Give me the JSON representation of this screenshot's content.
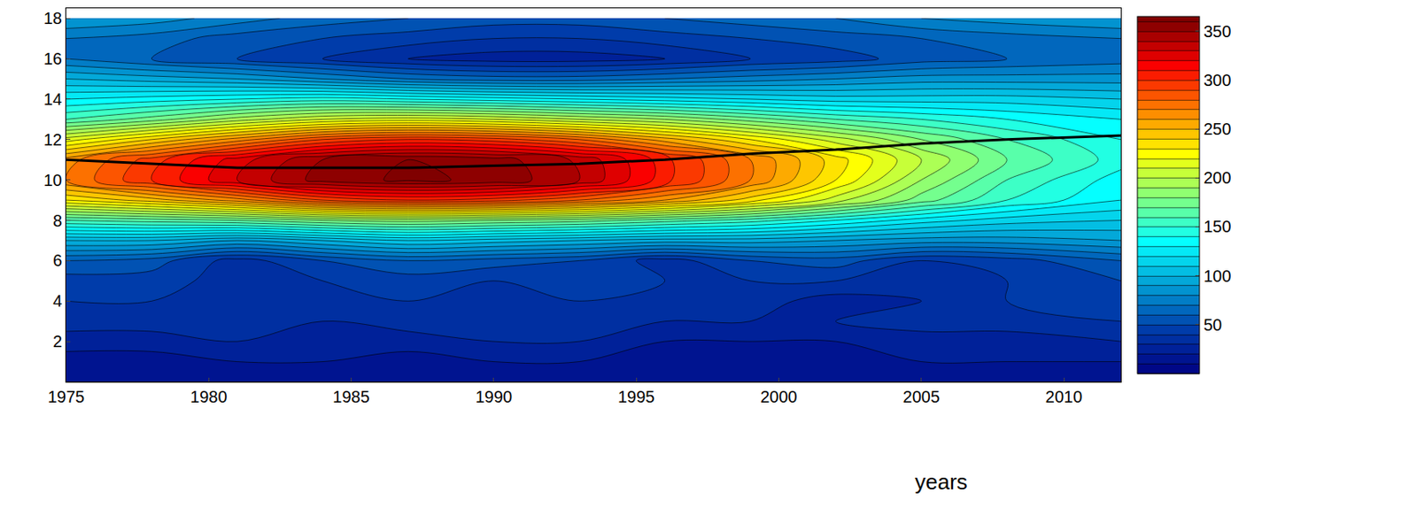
{
  "chart_data": {
    "type": "contour",
    "xlabel": "years",
    "x": [
      1975,
      1978,
      1981,
      1984,
      1987,
      1990,
      1993,
      1996,
      1999,
      2002,
      2005,
      2008,
      2012
    ],
    "y": [
      0,
      1,
      2,
      3,
      4,
      5,
      6,
      7,
      8,
      9,
      10,
      11,
      12,
      13,
      14,
      15,
      16,
      17,
      18
    ],
    "z": [
      [
        10,
        10,
        10,
        10,
        10,
        10,
        10,
        10,
        10,
        10,
        10,
        10,
        10
      ],
      [
        15,
        15,
        20,
        20,
        15,
        20,
        20,
        15,
        15,
        15,
        20,
        20,
        20
      ],
      [
        25,
        25,
        30,
        30,
        25,
        30,
        30,
        20,
        20,
        20,
        25,
        25,
        30
      ],
      [
        35,
        35,
        40,
        30,
        35,
        40,
        35,
        30,
        30,
        30,
        35,
        35,
        40
      ],
      [
        40,
        40,
        30,
        35,
        40,
        35,
        40,
        35,
        35,
        25,
        30,
        40,
        45
      ],
      [
        45,
        45,
        35,
        40,
        45,
        40,
        45,
        40,
        40,
        40,
        40,
        40,
        50
      ],
      [
        60,
        55,
        35,
        50,
        60,
        55,
        50,
        35,
        50,
        55,
        40,
        45,
        60
      ],
      [
        100,
        100,
        90,
        100,
        110,
        105,
        100,
        95,
        95,
        90,
        85,
        85,
        90
      ],
      [
        160,
        165,
        170,
        180,
        185,
        180,
        175,
        165,
        155,
        140,
        125,
        115,
        110
      ],
      [
        230,
        245,
        265,
        290,
        300,
        295,
        280,
        260,
        235,
        205,
        175,
        150,
        130
      ],
      [
        270,
        300,
        330,
        355,
        362,
        358,
        340,
        305,
        270,
        230,
        190,
        160,
        135
      ],
      [
        265,
        295,
        325,
        350,
        360,
        355,
        338,
        305,
        270,
        235,
        200,
        170,
        145
      ],
      [
        215,
        240,
        265,
        290,
        300,
        295,
        280,
        255,
        230,
        205,
        180,
        160,
        140
      ],
      [
        160,
        175,
        195,
        210,
        215,
        210,
        200,
        190,
        175,
        160,
        150,
        140,
        130
      ],
      [
        130,
        135,
        140,
        145,
        140,
        135,
        130,
        125,
        120,
        115,
        115,
        115,
        110
      ],
      [
        100,
        95,
        90,
        80,
        70,
        65,
        65,
        70,
        75,
        80,
        85,
        85,
        85
      ],
      [
        70,
        60,
        50,
        40,
        30,
        25,
        25,
        30,
        40,
        45,
        55,
        60,
        65
      ],
      [
        70,
        65,
        55,
        50,
        45,
        40,
        40,
        45,
        50,
        55,
        60,
        65,
        70
      ],
      [
        90,
        85,
        75,
        65,
        60,
        55,
        55,
        60,
        65,
        70,
        80,
        85,
        90
      ]
    ],
    "line": {
      "x": [
        1975,
        1978,
        1981,
        1984,
        1987,
        1990,
        1993,
        1996,
        1999,
        2002,
        2005,
        2008,
        2012
      ],
      "values": [
        11,
        10.8,
        10.6,
        10.6,
        10.6,
        10.7,
        10.8,
        11.0,
        11.3,
        11.5,
        11.8,
        12.0,
        12.2
      ],
      "color": "#000000"
    },
    "xlim": [
      1975,
      2012
    ],
    "xticks": [
      1975,
      1980,
      1985,
      1990,
      1995,
      2000,
      2005,
      2010
    ],
    "ylim": [
      0,
      18.5
    ],
    "yticks": [
      2,
      4,
      6,
      8,
      10,
      12,
      14,
      16,
      18
    ],
    "colorbar": {
      "range": [
        0,
        365
      ],
      "ticks": [
        50,
        100,
        150,
        200,
        250,
        300,
        350
      ]
    }
  }
}
